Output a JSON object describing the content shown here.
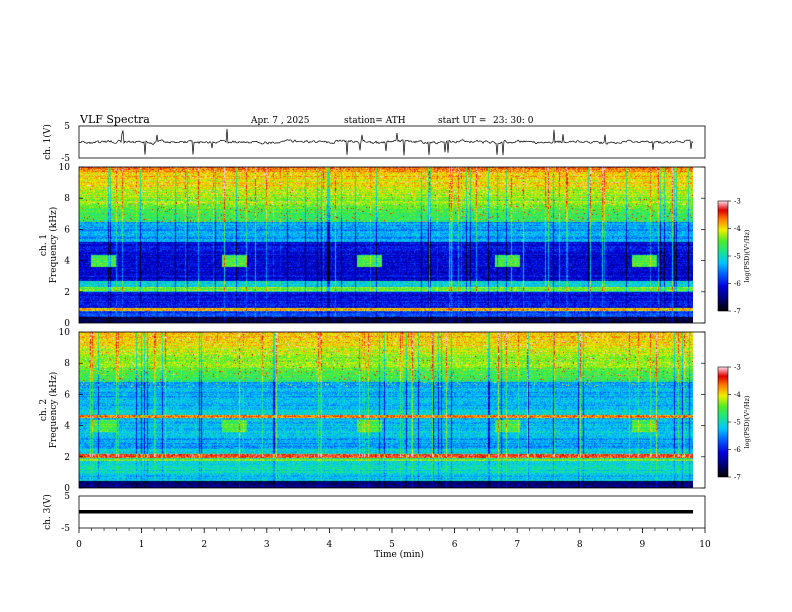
{
  "header": {
    "title": "VLF  Spectra",
    "date": "Apr. 7  , 2025",
    "station": "station= ATH",
    "start_label": "start  UT  =",
    "start_time": "23: 30: 0"
  },
  "chart_data": [
    {
      "type": "line",
      "name": "ch1-waveform",
      "ylabel": "ch. 1(V)",
      "ylim": [
        -5,
        5
      ],
      "yticks": [
        "5",
        "-5"
      ],
      "xlim": [
        0,
        10
      ],
      "description_level": 0
    },
    {
      "type": "heatmap",
      "name": "ch1-spectrogram",
      "ylabel": "ch. 1\nFrequency  (kHz)",
      "ylabel_lines": [
        "ch. 1",
        "Frequency  (kHz)"
      ],
      "ylim": [
        0,
        10
      ],
      "yticks": [
        "0",
        "2",
        "4",
        "6",
        "8",
        "10"
      ],
      "xlim": [
        0,
        10
      ],
      "colorbar": {
        "label": "log(PSD)(V²/Hz)",
        "range": [
          -7,
          -3
        ],
        "ticks": [
          "-3",
          "-4",
          "-5",
          "-6",
          "-7"
        ]
      },
      "pulse_times_min": [
        0.3,
        2.4,
        4.55,
        6.75,
        8.95
      ],
      "pulse_freq_khz": 4.0
    },
    {
      "type": "heatmap",
      "name": "ch2-spectrogram",
      "ylabel_lines": [
        "ch. 2",
        "Frequency  (kHz)"
      ],
      "ylim": [
        0,
        10
      ],
      "yticks": [
        "0",
        "2",
        "4",
        "6",
        "8",
        "10"
      ],
      "xlim": [
        0,
        10
      ],
      "colorbar": {
        "label": "log(PSD)(V²/Hz)",
        "range": [
          -7,
          -3
        ],
        "ticks": [
          "-3",
          "-4",
          "-5",
          "-6",
          "-7"
        ]
      },
      "pulse_times_min": [
        0.3,
        2.4,
        4.55,
        6.75,
        8.95
      ],
      "pulse_freq_khz": 3.9
    },
    {
      "type": "line",
      "name": "ch3-waveform",
      "ylabel": "ch. 3(V)",
      "ylim": [
        -5,
        5
      ],
      "yticks": [
        "5",
        "-5"
      ],
      "xlim": [
        0,
        10
      ],
      "level": 0
    }
  ],
  "xaxis": {
    "label": "Time  (min)",
    "range": [
      0,
      10
    ],
    "ticks": [
      "0",
      "1",
      "2",
      "3",
      "4",
      "5",
      "6",
      "7",
      "8",
      "9",
      "10"
    ]
  }
}
